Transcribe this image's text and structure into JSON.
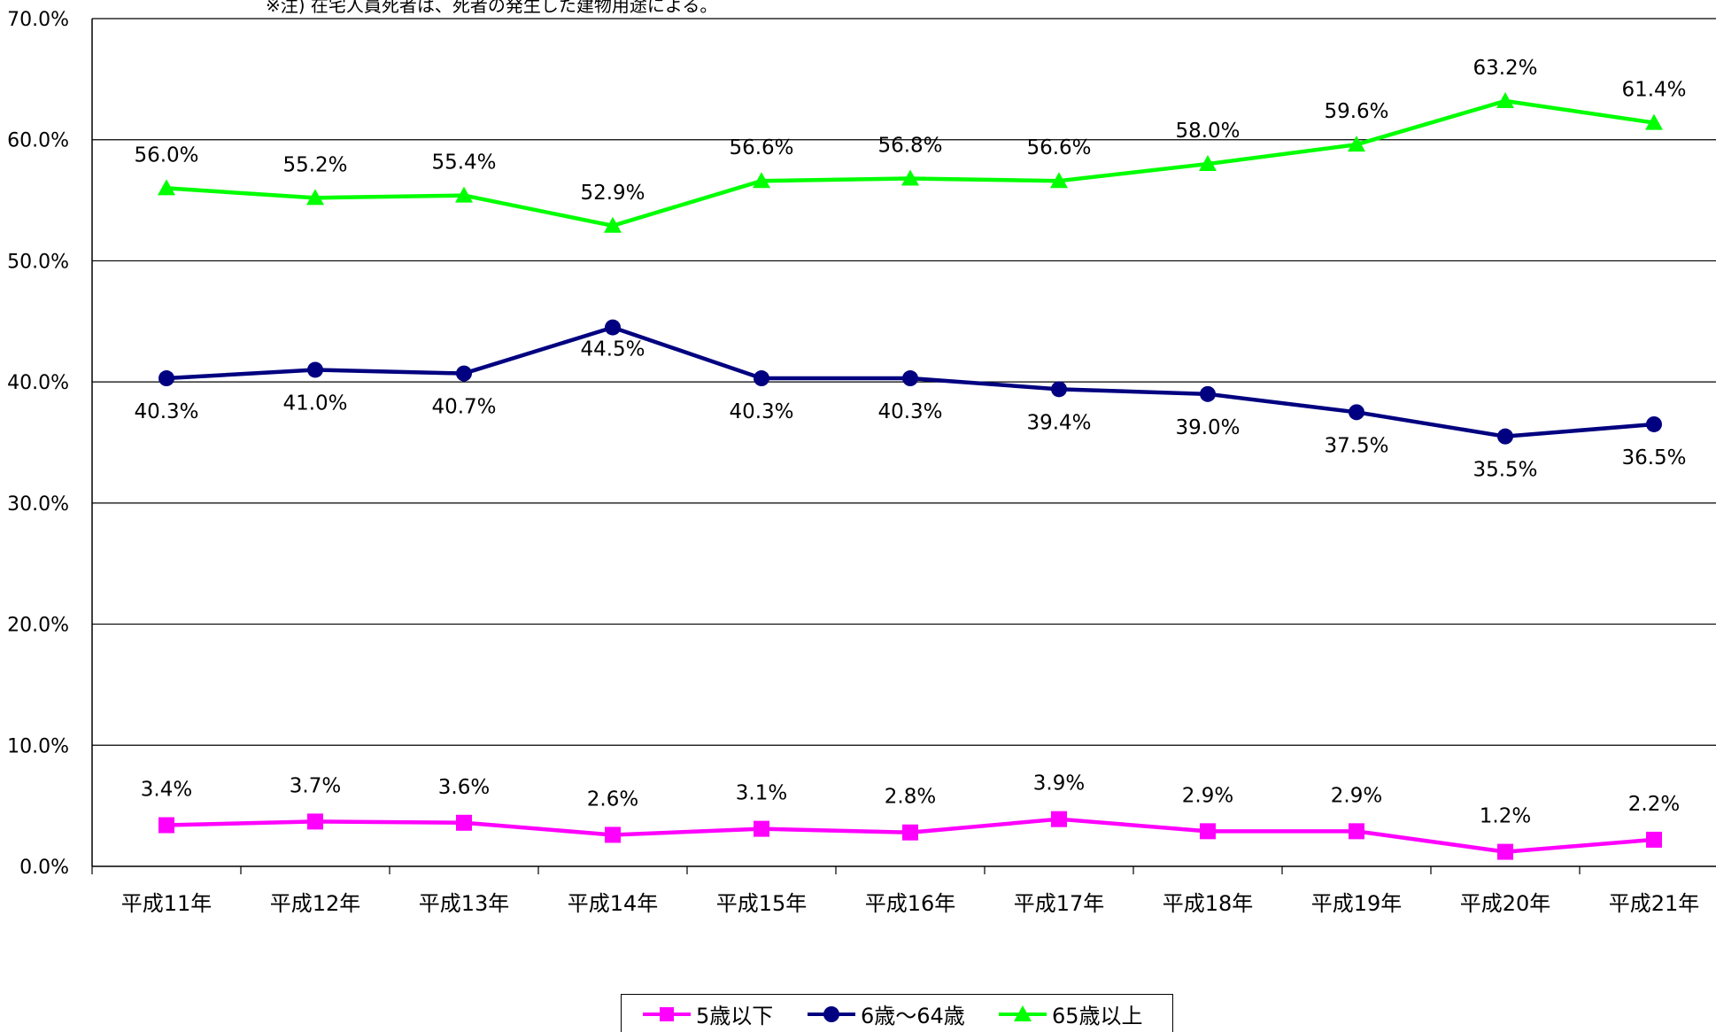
{
  "chart_data": {
    "type": "line",
    "note": "※注) 在宅人員死者は、死者の発生した建物用途による。",
    "categories": [
      "平成11年",
      "平成12年",
      "平成13年",
      "平成14年",
      "平成15年",
      "平成16年",
      "平成17年",
      "平成18年",
      "平成19年",
      "平成20年",
      "平成21年"
    ],
    "ylim": [
      0,
      70
    ],
    "yticks": [
      "0.0%",
      "10.0%",
      "20.0%",
      "30.0%",
      "40.0%",
      "50.0%",
      "60.0%",
      "70.0%"
    ],
    "grid": true,
    "legend_position": "bottom",
    "series": [
      {
        "name": "5歳以下",
        "color": "#ff00ff",
        "marker": "square",
        "values": [
          3.4,
          3.7,
          3.6,
          2.6,
          3.1,
          2.8,
          3.9,
          2.9,
          2.9,
          1.2,
          2.2
        ],
        "labels": [
          "3.4%",
          "3.7%",
          "3.6%",
          "2.6%",
          "3.1%",
          "2.8%",
          "3.9%",
          "2.9%",
          "2.9%",
          "1.2%",
          "2.2%"
        ]
      },
      {
        "name": "6歳～64歳",
        "color": "#000080",
        "marker": "circle",
        "values": [
          40.3,
          41.0,
          40.7,
          44.5,
          40.3,
          40.3,
          39.4,
          39.0,
          37.5,
          35.5,
          36.5
        ],
        "labels": [
          "40.3%",
          "41.0%",
          "40.7%",
          "44.5%",
          "40.3%",
          "40.3%",
          "39.4%",
          "39.0%",
          "37.5%",
          "35.5%",
          "36.5%"
        ]
      },
      {
        "name": "65歳以上",
        "color": "#00ff00",
        "marker": "triangle",
        "values": [
          56.0,
          55.2,
          55.4,
          52.9,
          56.6,
          56.8,
          56.6,
          58.0,
          59.6,
          63.2,
          61.4
        ],
        "labels": [
          "56.0%",
          "55.2%",
          "55.4%",
          "52.9%",
          "56.6%",
          "56.8%",
          "56.6%",
          "58.0%",
          "59.6%",
          "63.2%",
          "61.4%"
        ]
      }
    ]
  }
}
